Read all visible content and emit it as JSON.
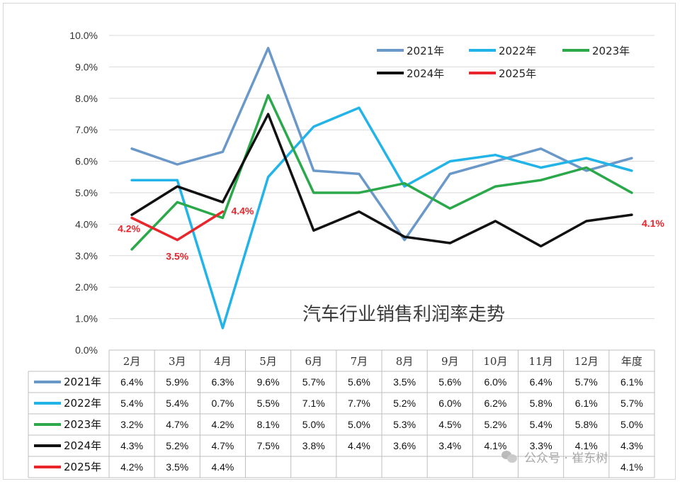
{
  "chart_data": {
    "type": "line",
    "title": "汽车行业销售利润率走势",
    "categories": [
      "2月",
      "3月",
      "4月",
      "5月",
      "6月",
      "7月",
      "8月",
      "9月",
      "10月",
      "11月",
      "12月",
      "年度"
    ],
    "y_ticks": [
      "0.0%",
      "1.0%",
      "2.0%",
      "3.0%",
      "4.0%",
      "5.0%",
      "6.0%",
      "7.0%",
      "8.0%",
      "9.0%",
      "10.0%"
    ],
    "ylim": [
      0,
      10
    ],
    "legend_position": "top-right",
    "series": [
      {
        "name": "2021年",
        "color": "#6a98c9",
        "values": [
          6.4,
          5.9,
          6.3,
          9.6,
          5.7,
          5.6,
          3.5,
          5.6,
          6.0,
          6.4,
          5.7,
          6.1
        ],
        "labels": [
          "6.4%",
          "5.9%",
          "6.3%",
          "9.6%",
          "5.7%",
          "5.6%",
          "3.5%",
          "5.6%",
          "6.0%",
          "6.4%",
          "5.7%",
          "6.1%"
        ]
      },
      {
        "name": "2022年",
        "color": "#22b4e8",
        "values": [
          5.4,
          5.4,
          0.7,
          5.5,
          7.1,
          7.7,
          5.2,
          6.0,
          6.2,
          5.8,
          6.1,
          5.7
        ],
        "labels": [
          "5.4%",
          "5.4%",
          "0.7%",
          "5.5%",
          "7.1%",
          "7.7%",
          "5.2%",
          "6.0%",
          "6.2%",
          "5.8%",
          "6.1%",
          "5.7%"
        ]
      },
      {
        "name": "2023年",
        "color": "#2aa84a",
        "values": [
          3.2,
          4.7,
          4.2,
          8.1,
          5.0,
          5.0,
          5.3,
          4.5,
          5.2,
          5.4,
          5.8,
          5.0
        ],
        "labels": [
          "3.2%",
          "4.7%",
          "4.2%",
          "8.1%",
          "5.0%",
          "5.0%",
          "5.3%",
          "4.5%",
          "5.2%",
          "5.4%",
          "5.8%",
          "5.0%"
        ]
      },
      {
        "name": "2024年",
        "color": "#111111",
        "values": [
          4.3,
          5.2,
          4.7,
          7.5,
          3.8,
          4.4,
          3.6,
          3.4,
          4.1,
          3.3,
          4.1,
          4.3
        ],
        "labels": [
          "4.3%",
          "5.2%",
          "4.7%",
          "7.5%",
          "3.8%",
          "4.4%",
          "3.6%",
          "3.4%",
          "4.1%",
          "3.3%",
          "4.1%",
          "4.3%"
        ]
      },
      {
        "name": "2025年",
        "color": "#e8262c",
        "values": [
          4.2,
          3.5,
          4.4,
          null,
          null,
          null,
          null,
          null,
          null,
          null,
          null,
          4.1
        ],
        "labels": [
          "4.2%",
          "3.5%",
          "4.4%",
          "",
          "",
          "",
          "",
          "",
          "",
          "",
          "",
          "4.1%"
        ]
      }
    ],
    "annotations": [
      "4.2%",
      "3.5%",
      "4.4%",
      "4.1%"
    ]
  },
  "watermark": {
    "text": "公众号 · 崔东树"
  }
}
